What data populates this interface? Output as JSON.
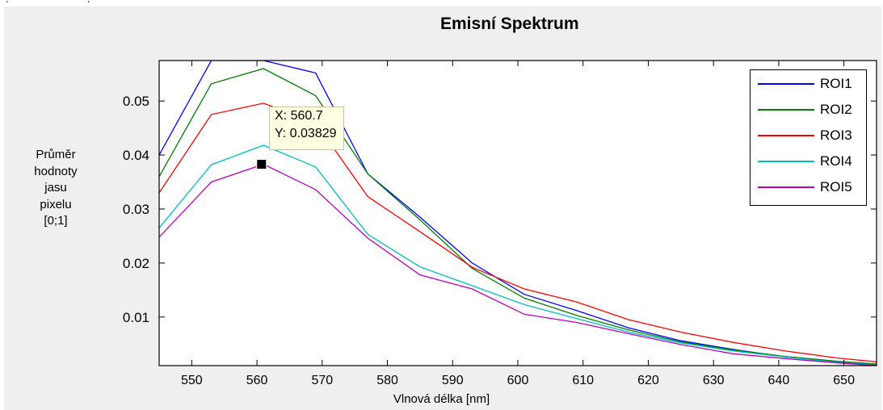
{
  "chart_data": {
    "type": "line",
    "title": "Emisní Spektrum",
    "xlabel": "Vlnová délka [nm]",
    "ylabel_lines": [
      "Průměr",
      "hodnoty",
      "jasu",
      "pixelu",
      "[0;1]"
    ],
    "xlim": [
      545,
      655
    ],
    "ylim": [
      0.001,
      0.0575
    ],
    "xticks": [
      550,
      560,
      570,
      580,
      590,
      600,
      610,
      620,
      630,
      640,
      650
    ],
    "yticks": [
      0.01,
      0.02,
      0.03,
      0.04,
      0.05
    ],
    "ytick_labels": [
      "0.01",
      "0.02",
      "0.03",
      "0.04",
      "0.05"
    ],
    "legend_position": "top-right",
    "x": [
      545,
      553,
      561,
      569,
      577,
      585,
      593,
      601,
      609,
      617,
      625,
      633,
      641,
      649,
      655
    ],
    "series": [
      {
        "name": "ROI1",
        "color": "#0000ff",
        "values": [
          0.04,
          0.0575,
          0.0575,
          0.0552,
          0.0365,
          0.0285,
          0.02,
          0.0142,
          0.0112,
          0.008,
          0.0056,
          0.004,
          0.0026,
          0.0017,
          0.0012
        ]
      },
      {
        "name": "ROI2",
        "color": "#007f00",
        "values": [
          0.036,
          0.0532,
          0.056,
          0.051,
          0.0365,
          0.028,
          0.019,
          0.0135,
          0.0103,
          0.0076,
          0.0054,
          0.0039,
          0.0027,
          0.0018,
          0.0013
        ]
      },
      {
        "name": "ROI3",
        "color": "#ff0000",
        "values": [
          0.033,
          0.0475,
          0.0496,
          0.046,
          0.0323,
          0.0258,
          0.0192,
          0.0152,
          0.0128,
          0.0095,
          0.0072,
          0.0053,
          0.0037,
          0.0024,
          0.0017
        ]
      },
      {
        "name": "ROI4",
        "color": "#00bfbf",
        "values": [
          0.0265,
          0.0382,
          0.0418,
          0.0378,
          0.0253,
          0.0193,
          0.0158,
          0.0123,
          0.0097,
          0.0072,
          0.0052,
          0.0037,
          0.0026,
          0.0016,
          0.0011
        ]
      },
      {
        "name": "ROI5",
        "color": "#bf00bf",
        "values": [
          0.0248,
          0.035,
          0.0383,
          0.0336,
          0.0246,
          0.0178,
          0.0152,
          0.0105,
          0.009,
          0.0069,
          0.0049,
          0.0032,
          0.0023,
          0.0015,
          0.001
        ]
      }
    ],
    "datatip": {
      "x": 560.7,
      "y": 0.03829,
      "x_text": "X: 560.7",
      "y_text": "Y: 0.03829"
    }
  },
  "axis_color": "#000000",
  "plot_background": "#ffffff",
  "figure_background": "#efefef"
}
